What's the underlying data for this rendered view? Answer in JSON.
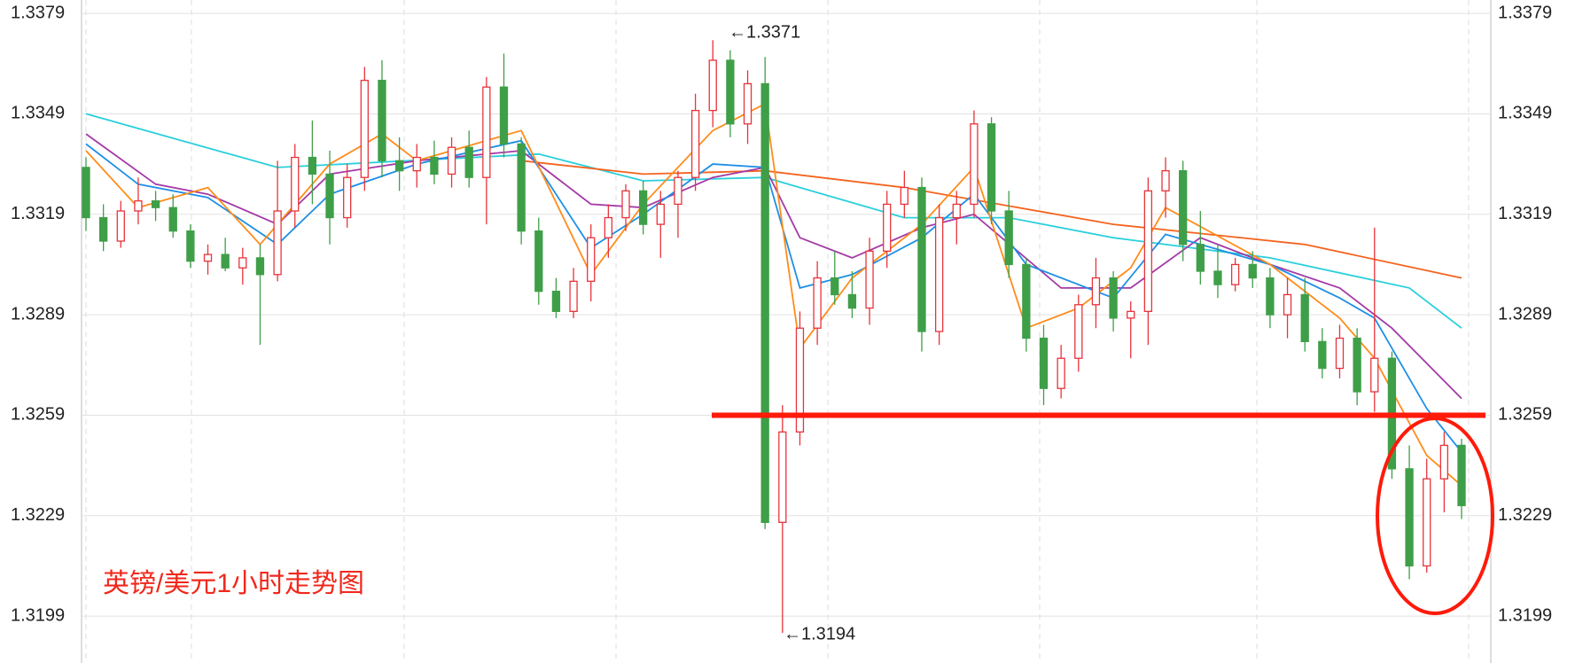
{
  "chart_data": {
    "type": "candlestick",
    "title": "英镑/美元1小时走势图",
    "ylim": [
      1.3185,
      1.3383
    ],
    "yticks": [
      1.3199,
      1.3229,
      1.3259,
      1.3289,
      1.3319,
      1.3349,
      1.3379
    ],
    "grid": true,
    "up_color": "#e8333b",
    "down_color": "#3f9f48",
    "open": [
      1.3333,
      1.3318,
      1.3311,
      1.332,
      1.3323,
      1.3321,
      1.3314,
      1.3305,
      1.3307,
      1.3303,
      1.3306,
      1.3301,
      1.332,
      1.3336,
      1.3331,
      1.3318,
      1.333,
      1.3359,
      1.3335,
      1.3332,
      1.3336,
      1.3331,
      1.3339,
      1.333,
      1.3357,
      1.334,
      1.3314,
      1.3296,
      1.329,
      1.3299,
      1.3312,
      1.3318,
      1.3326,
      1.3316,
      1.3322,
      1.333,
      1.335,
      1.3365,
      1.3346,
      1.3358,
      1.3227,
      1.3254,
      1.3285,
      1.33,
      1.3295,
      1.3291,
      1.3308,
      1.3322,
      1.3327,
      1.3284,
      1.3318,
      1.3322,
      1.3346,
      1.332,
      1.3304,
      1.3282,
      1.3267,
      1.3276,
      1.3292,
      1.33,
      1.3288,
      1.329,
      1.3326,
      1.3332,
      1.331,
      1.3302,
      1.3298,
      1.3304,
      1.33,
      1.3289,
      1.3295,
      1.3281,
      1.3273,
      1.3282,
      1.3266,
      1.3276,
      1.3243,
      1.3214,
      1.324,
      1.325
    ],
    "high": [
      1.3336,
      1.3322,
      1.3323,
      1.333,
      1.3326,
      1.3325,
      1.3316,
      1.331,
      1.3312,
      1.3309,
      1.331,
      1.3335,
      1.334,
      1.3347,
      1.3338,
      1.3334,
      1.3363,
      1.3365,
      1.3342,
      1.334,
      1.3341,
      1.3342,
      1.3344,
      1.336,
      1.3367,
      1.3342,
      1.3318,
      1.33,
      1.3303,
      1.3316,
      1.3322,
      1.3328,
      1.3329,
      1.3326,
      1.3332,
      1.3355,
      1.3371,
      1.3368,
      1.3362,
      1.3366,
      1.3262,
      1.329,
      1.3305,
      1.3308,
      1.3302,
      1.3312,
      1.3326,
      1.3332,
      1.333,
      1.3322,
      1.3326,
      1.335,
      1.3348,
      1.3326,
      1.3306,
      1.3286,
      1.328,
      1.3295,
      1.3306,
      1.3302,
      1.3293,
      1.333,
      1.3336,
      1.3335,
      1.332,
      1.331,
      1.3306,
      1.3308,
      1.3303,
      1.33,
      1.33,
      1.3285,
      1.3286,
      1.3285,
      1.3315,
      1.3278,
      1.325,
      1.3246,
      1.3254,
      1.3252
    ],
    "low": [
      1.3314,
      1.3308,
      1.3309,
      1.3316,
      1.3317,
      1.3312,
      1.3303,
      1.3301,
      1.3302,
      1.3298,
      1.328,
      1.3299,
      1.3315,
      1.3322,
      1.331,
      1.3315,
      1.3326,
      1.333,
      1.3326,
      1.3327,
      1.3328,
      1.3327,
      1.3327,
      1.3316,
      1.3336,
      1.331,
      1.3292,
      1.3288,
      1.3288,
      1.3293,
      1.3306,
      1.3314,
      1.3313,
      1.3306,
      1.3312,
      1.3326,
      1.3345,
      1.3342,
      1.334,
      1.3225,
      1.3194,
      1.325,
      1.328,
      1.3292,
      1.3288,
      1.3286,
      1.3303,
      1.3318,
      1.3278,
      1.328,
      1.331,
      1.3318,
      1.3316,
      1.33,
      1.3278,
      1.3262,
      1.3264,
      1.3272,
      1.3285,
      1.3284,
      1.3276,
      1.328,
      1.3318,
      1.3305,
      1.3298,
      1.3294,
      1.3296,
      1.3297,
      1.3285,
      1.3282,
      1.3278,
      1.327,
      1.327,
      1.3262,
      1.326,
      1.324,
      1.321,
      1.3212,
      1.323,
      1.3228
    ],
    "close": [
      1.3318,
      1.3311,
      1.332,
      1.3323,
      1.3321,
      1.3314,
      1.3305,
      1.3307,
      1.3303,
      1.3306,
      1.3301,
      1.332,
      1.3336,
      1.3331,
      1.3318,
      1.333,
      1.3359,
      1.3335,
      1.3332,
      1.3336,
      1.3331,
      1.3339,
      1.333,
      1.3357,
      1.334,
      1.3314,
      1.3296,
      1.329,
      1.3299,
      1.3312,
      1.3318,
      1.3326,
      1.3316,
      1.3322,
      1.333,
      1.335,
      1.3365,
      1.3346,
      1.3358,
      1.3227,
      1.3254,
      1.3285,
      1.33,
      1.3295,
      1.3291,
      1.3308,
      1.3322,
      1.3327,
      1.3284,
      1.3318,
      1.3322,
      1.3346,
      1.332,
      1.3304,
      1.3282,
      1.3267,
      1.3276,
      1.3292,
      1.33,
      1.3288,
      1.329,
      1.3326,
      1.3332,
      1.331,
      1.3302,
      1.3298,
      1.3304,
      1.33,
      1.3289,
      1.3295,
      1.3281,
      1.3273,
      1.3282,
      1.3266,
      1.3276,
      1.3243,
      1.3214,
      1.324,
      1.325,
      1.3232
    ],
    "lines": [
      {
        "color": "#29cfdc",
        "x": [
          0,
          11,
          26,
          32,
          39,
          47,
          53,
          59,
          68,
          76,
          79
        ],
        "values": [
          1.3349,
          1.3333,
          1.3337,
          1.3329,
          1.333,
          1.3318,
          1.3318,
          1.3312,
          1.3306,
          1.3297,
          1.3285
        ]
      },
      {
        "color": "#f4631e",
        "x": [
          25,
          32,
          39,
          47,
          59,
          70,
          79
        ],
        "values": [
          1.3335,
          1.3331,
          1.3332,
          1.3327,
          1.3316,
          1.331,
          1.33
        ]
      },
      {
        "color": "#a43aa6",
        "x": [
          0,
          4,
          7,
          11,
          14,
          19,
          25,
          29,
          32,
          36,
          39,
          41,
          44,
          48,
          51,
          56,
          60,
          64,
          68,
          72,
          75,
          79
        ],
        "values": [
          1.3343,
          1.3328,
          1.3325,
          1.3316,
          1.3331,
          1.3335,
          1.3338,
          1.3322,
          1.3321,
          1.333,
          1.3333,
          1.3312,
          1.3306,
          1.3315,
          1.3319,
          1.3297,
          1.3297,
          1.3312,
          1.3304,
          1.3297,
          1.3285,
          1.3264
        ]
      },
      {
        "color": "#1e8fe6",
        "x": [
          0,
          3,
          7,
          11,
          14,
          19,
          25,
          29,
          32,
          36,
          39,
          41,
          44,
          48,
          51,
          54,
          59,
          62,
          68,
          72,
          74,
          77,
          79
        ],
        "values": [
          1.334,
          1.3328,
          1.3324,
          1.331,
          1.3325,
          1.3334,
          1.3341,
          1.3309,
          1.3319,
          1.3334,
          1.3333,
          1.3297,
          1.3301,
          1.3312,
          1.3325,
          1.3304,
          1.3294,
          1.3313,
          1.3304,
          1.3294,
          1.3288,
          1.3261,
          1.3248
        ]
      },
      {
        "color": "#ff8c1a",
        "x": [
          0,
          3,
          7,
          10,
          14,
          17,
          19,
          25,
          29,
          32,
          36,
          39,
          41,
          44,
          48,
          51,
          54,
          57,
          60,
          62,
          68,
          72,
          74,
          77,
          79
        ],
        "values": [
          1.3338,
          1.3321,
          1.3327,
          1.331,
          1.3334,
          1.3343,
          1.3335,
          1.3344,
          1.3301,
          1.3322,
          1.3344,
          1.3352,
          1.3279,
          1.33,
          1.3316,
          1.3333,
          1.3285,
          1.3291,
          1.3303,
          1.3321,
          1.3304,
          1.3288,
          1.3276,
          1.3247,
          1.3238
        ]
      }
    ],
    "hline": {
      "value": 1.3259,
      "color": "#ff1a0a"
    },
    "annotations": [
      "←1.3371",
      "←1.3194"
    ]
  }
}
